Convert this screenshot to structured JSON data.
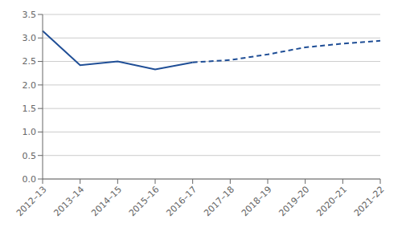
{
  "chart_data": {
    "type": "line",
    "categories": [
      "2012–13",
      "2013–14",
      "2014–15",
      "2015–16",
      "2016–17",
      "2017–18",
      "2018–19",
      "2019–20",
      "2020–21",
      "2021–22"
    ],
    "series": [
      {
        "color": "#1F4E96",
        "line_style": "solid",
        "values": [
          3.15,
          2.42,
          2.5,
          2.33,
          2.48,
          null,
          null,
          null,
          null,
          null
        ]
      },
      {
        "color": "#1F4E96",
        "line_style": "dashed",
        "values": [
          null,
          null,
          null,
          null,
          2.48,
          2.53,
          2.65,
          2.8,
          2.88,
          2.94
        ]
      }
    ],
    "ylim": [
      0.0,
      3.5
    ],
    "yticks": [
      {
        "value": 0.0,
        "label": "0.0"
      },
      0.5,
      {
        "value": 1.0,
        "label": "1.0"
      },
      1.5,
      {
        "value": 2.0,
        "label": "2.0"
      },
      2.5,
      {
        "value": 3.0,
        "label": "3.0"
      },
      3.5
    ],
    "grid": true
  }
}
